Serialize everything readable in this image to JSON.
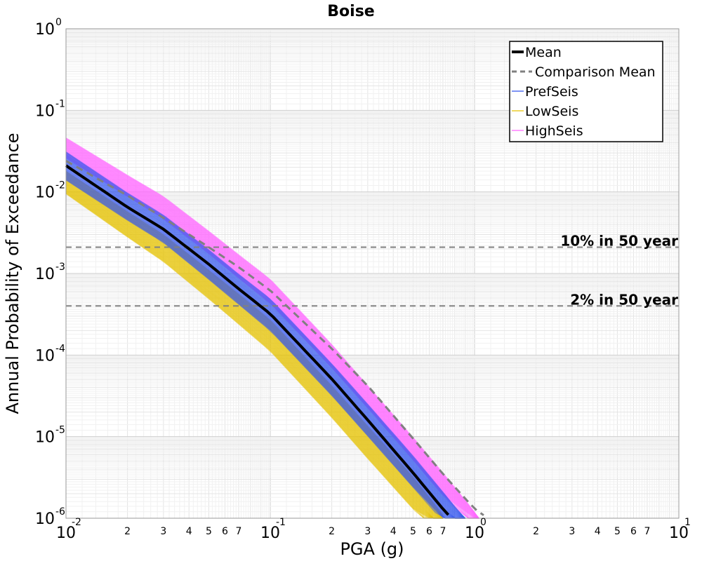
{
  "chart_data": {
    "type": "line",
    "title": "Boise",
    "xlabel": "PGA (g)",
    "ylabel": "Annual Probability of Exceedance",
    "x_scale": "log",
    "y_scale": "log",
    "xlim": [
      0.01,
      10
    ],
    "ylim": [
      1e-06,
      1
    ],
    "grid": true,
    "legend_position": "top-right",
    "x_major_ticks": [
      {
        "base": "10",
        "exp": "-2",
        "value": 0.01
      },
      {
        "base": "10",
        "exp": "-1",
        "value": 0.1
      },
      {
        "base": "10",
        "exp": "0",
        "value": 1
      },
      {
        "base": "10",
        "exp": "1",
        "value": 10
      }
    ],
    "x_minor_ticks": [
      {
        "label": "2",
        "value": 0.02
      },
      {
        "label": "3",
        "value": 0.03
      },
      {
        "label": "4",
        "value": 0.04
      },
      {
        "label": "5",
        "value": 0.05
      },
      {
        "label": "6",
        "value": 0.06
      },
      {
        "label": "7",
        "value": 0.07
      },
      {
        "label": "2",
        "value": 0.2
      },
      {
        "label": "3",
        "value": 0.3
      },
      {
        "label": "4",
        "value": 0.4
      },
      {
        "label": "5",
        "value": 0.5
      },
      {
        "label": "6",
        "value": 0.6
      },
      {
        "label": "7",
        "value": 0.7
      },
      {
        "label": "2",
        "value": 2
      },
      {
        "label": "3",
        "value": 3
      },
      {
        "label": "4",
        "value": 4
      },
      {
        "label": "5",
        "value": 5
      },
      {
        "label": "6",
        "value": 6
      },
      {
        "label": "7",
        "value": 7
      }
    ],
    "y_major_ticks": [
      {
        "base": "10",
        "exp": "0",
        "value": 1
      },
      {
        "base": "10",
        "exp": "-1",
        "value": 0.1
      },
      {
        "base": "10",
        "exp": "-2",
        "value": 0.01
      },
      {
        "base": "10",
        "exp": "-3",
        "value": 0.001
      },
      {
        "base": "10",
        "exp": "-4",
        "value": 0.0001
      },
      {
        "base": "10",
        "exp": "-5",
        "value": 1e-05
      },
      {
        "base": "10",
        "exp": "-6",
        "value": 1e-06
      }
    ],
    "reference_lines": [
      {
        "label": "10% in 50 year",
        "y": 0.0021,
        "color": "#808080"
      },
      {
        "label": "2% in 50 year",
        "y": 0.0004,
        "color": "#808080"
      }
    ],
    "series": [
      {
        "name": "Mean",
        "style": "solid",
        "color": "#000000",
        "x": [
          0.01,
          0.02,
          0.03,
          0.05,
          0.07,
          0.1,
          0.2,
          0.3,
          0.5,
          0.7,
          0.8
        ],
        "y": [
          0.021,
          0.0065,
          0.0035,
          0.0013,
          0.00065,
          0.00032,
          5.1e-05,
          1.6e-05,
          3.6e-06,
          1.3e-06,
          9e-07
        ]
      },
      {
        "name": "Comparison Mean",
        "style": "dashed",
        "color": "#808080",
        "x": [
          0.01,
          0.02,
          0.03,
          0.05,
          0.07,
          0.1,
          0.2,
          0.3,
          0.5,
          0.7,
          1.0,
          1.2
        ],
        "y": [
          0.024,
          0.009,
          0.0048,
          0.0021,
          0.0012,
          0.00062,
          0.00012,
          4.2e-05,
          9.5e-06,
          3.5e-06,
          1.3e-06,
          9.5e-07
        ]
      },
      {
        "name": "PrefSeis",
        "style": "band",
        "color": "#3355ee",
        "x": [
          0.01,
          0.02,
          0.03,
          0.05,
          0.07,
          0.1,
          0.2,
          0.3,
          0.5,
          0.7,
          0.9
        ],
        "y_low": [
          0.014,
          0.0045,
          0.0024,
          0.00085,
          0.00042,
          0.0002,
          3.2e-05,
          1.02e-05,
          2.4e-06,
          9.2e-07,
          6.3e-07
        ],
        "y_high": [
          0.031,
          0.0097,
          0.0052,
          0.00195,
          0.00098,
          0.00049,
          7.8e-05,
          2.5e-05,
          5.8e-06,
          2.1e-06,
          9.5e-07
        ]
      },
      {
        "name": "LowSeis",
        "style": "band",
        "color": "#e6c200",
        "x": [
          0.01,
          0.02,
          0.03,
          0.05,
          0.07,
          0.1,
          0.2,
          0.3,
          0.5,
          0.6,
          0.7
        ],
        "y_low": [
          0.0095,
          0.0028,
          0.0014,
          0.00049,
          0.00024,
          0.000112,
          1.72e-05,
          5.4e-06,
          1.3e-06,
          8e-07,
          6.3e-07
        ],
        "y_high": [
          0.018,
          0.0057,
          0.003,
          0.0011,
          0.00056,
          0.00027,
          4.2e-05,
          1.35e-05,
          3.2e-06,
          1.8e-06,
          1.1e-06
        ]
      },
      {
        "name": "HighSeis",
        "style": "band",
        "color": "#ff66ff",
        "x": [
          0.01,
          0.02,
          0.03,
          0.05,
          0.07,
          0.1,
          0.2,
          0.3,
          0.5,
          0.7,
          1.0,
          1.05
        ],
        "y_low": [
          0.026,
          0.0088,
          0.0047,
          0.00175,
          0.00088,
          0.00043,
          7e-05,
          2.25e-05,
          5.2e-06,
          1.9e-06,
          7.8e-07,
          6.2e-07
        ],
        "y_high": [
          0.046,
          0.016,
          0.0088,
          0.0033,
          0.0017,
          0.00085,
          0.000135,
          4.2e-05,
          9.8e-06,
          3.6e-06,
          1.2e-06,
          9e-07
        ]
      }
    ]
  }
}
